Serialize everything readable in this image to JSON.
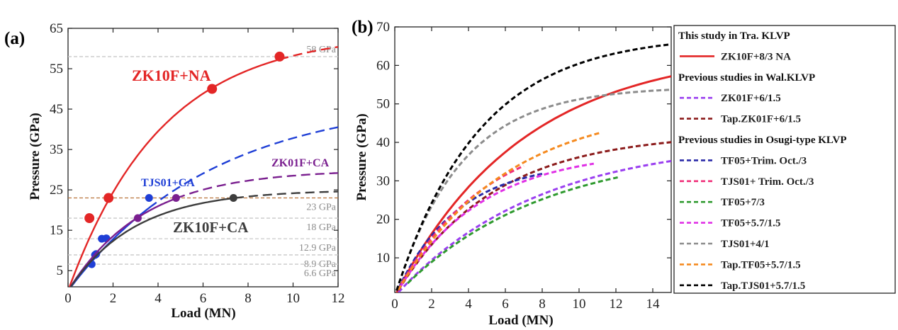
{
  "chart_data": [
    {
      "panel": "(a)",
      "type": "line",
      "xlabel": "Load (MN)",
      "ylabel": "Pressure (GPa)",
      "xlim": [
        0,
        12
      ],
      "ylim": [
        1,
        65
      ],
      "xticks": [
        0,
        2,
        4,
        6,
        8,
        10,
        12
      ],
      "yticks": [
        5,
        15,
        25,
        35,
        45,
        55,
        65
      ],
      "ref_lines": [
        {
          "y": 58,
          "label": "58 GPa",
          "color": "#c8c8c8"
        },
        {
          "y": 23,
          "label": "23 GPa",
          "color": "#b8733a"
        },
        {
          "y": 18,
          "label": "18 GPa",
          "color": "#c8c8c8"
        },
        {
          "y": 12.9,
          "label": "12.9 GPa",
          "color": "#c8c8c8"
        },
        {
          "y": 8.9,
          "label": "8.9 GPa",
          "color": "#c8c8c8"
        },
        {
          "y": 6.6,
          "label": "6.6 GPa",
          "color": "#c8c8c8"
        }
      ],
      "series": [
        {
          "name": "ZK10F+NA",
          "color": "#e32626",
          "Pmax": 64.0,
          "k": 0.24,
          "solid_until": 9.4,
          "points": [
            [
              0.95,
              18.0
            ],
            [
              1.8,
              23.0
            ],
            [
              6.4,
              50.0
            ],
            [
              9.4,
              58.0
            ]
          ]
        },
        {
          "name": "TJS01+CA",
          "color": "#1f3fd6",
          "Pmax": 48.0,
          "k": 0.155,
          "solid_until": 3.6,
          "points": [
            [
              1.05,
              6.6
            ],
            [
              1.2,
              8.9
            ],
            [
              1.25,
              9.1
            ],
            [
              1.5,
              12.9
            ],
            [
              1.7,
              13.0
            ],
            [
              3.6,
              23.0
            ]
          ]
        },
        {
          "name": "ZK01F+CA",
          "color": "#7a1f8f",
          "Pmax": 30.0,
          "k": 0.3,
          "solid_until": 4.8,
          "points": [
            [
              3.1,
              18.0
            ],
            [
              4.8,
              23.0
            ]
          ]
        },
        {
          "name": "ZK10F+CA",
          "color": "#3d3d3d",
          "Pmax": 25.0,
          "k": 0.34,
          "solid_until": 7.4,
          "points": [
            [
              7.35,
              23.0
            ]
          ]
        }
      ]
    },
    {
      "panel": "(b)",
      "type": "line",
      "xlabel": "Load (MN)",
      "ylabel": "Pressure (GPa)",
      "xlim": [
        0,
        15
      ],
      "ylim": [
        1,
        70
      ],
      "xticks": [
        0,
        2,
        4,
        6,
        8,
        10,
        12,
        14
      ],
      "yticks": [
        10,
        20,
        30,
        40,
        50,
        60,
        70
      ],
      "legend_groups": [
        "This study in Tra. KLVP",
        "Previous studies in Wal.KLVP",
        "Previous studies in Osugi-type KLVP"
      ],
      "series": [
        {
          "name": "ZK10F+8/3 NA",
          "group": 0,
          "color": "#e32626",
          "style": "solid",
          "x0": 0.1,
          "x1": 15,
          "Pmax": 64.5,
          "k": 0.145
        },
        {
          "name": "ZK01F+6/1.5",
          "group": 1,
          "color": "#9a3ff0",
          "style": "dash",
          "x0": 0.2,
          "x1": 15,
          "Pmax": 41.0,
          "k": 0.13
        },
        {
          "name": "Tap.ZK01F+6/1.5",
          "group": 1,
          "color": "#8b1a1a",
          "style": "dash",
          "x0": 0.2,
          "x1": 15,
          "Pmax": 42.5,
          "k": 0.19
        },
        {
          "name": "TF05+Trim. Oct./3",
          "group": 2,
          "color": "#2a2aa8",
          "style": "dash",
          "x0": 0.2,
          "x1": 8.1,
          "Pmax": 35.0,
          "k": 0.3
        },
        {
          "name": "TJS01+ Trim. Oct./3",
          "group": 2,
          "color": "#f0307a",
          "style": "dash",
          "x0": 0.2,
          "x1": 7.0,
          "Pmax": 44.0,
          "k": 0.21
        },
        {
          "name": "TF05+7/3",
          "group": 2,
          "color": "#2f9a2f",
          "style": "dash",
          "x0": 0.7,
          "x1": 12.1,
          "Pmax": 39.0,
          "k": 0.13
        },
        {
          "name": "TF05+5.7/1.5",
          "group": 2,
          "color": "#e030e6",
          "style": "dash",
          "x0": 0.3,
          "x1": 10.8,
          "Pmax": 38.0,
          "k": 0.22
        },
        {
          "name": "TJS01+4/1",
          "group": 2,
          "color": "#8c8c8c",
          "style": "dash",
          "x0": 0.1,
          "x1": 15,
          "Pmax": 54.5,
          "k": 0.28
        },
        {
          "name": "Tap.TF05+5.7/1.5",
          "group": 2,
          "color": "#f58a1f",
          "style": "dash",
          "x0": 0.2,
          "x1": 11.1,
          "Pmax": 50.0,
          "k": 0.17
        },
        {
          "name": "Tap.TJS01+5.7/1.5",
          "group": 2,
          "color": "#000000",
          "style": "dash",
          "x0": 0.1,
          "x1": 15,
          "Pmax": 68.0,
          "k": 0.22
        }
      ]
    }
  ]
}
